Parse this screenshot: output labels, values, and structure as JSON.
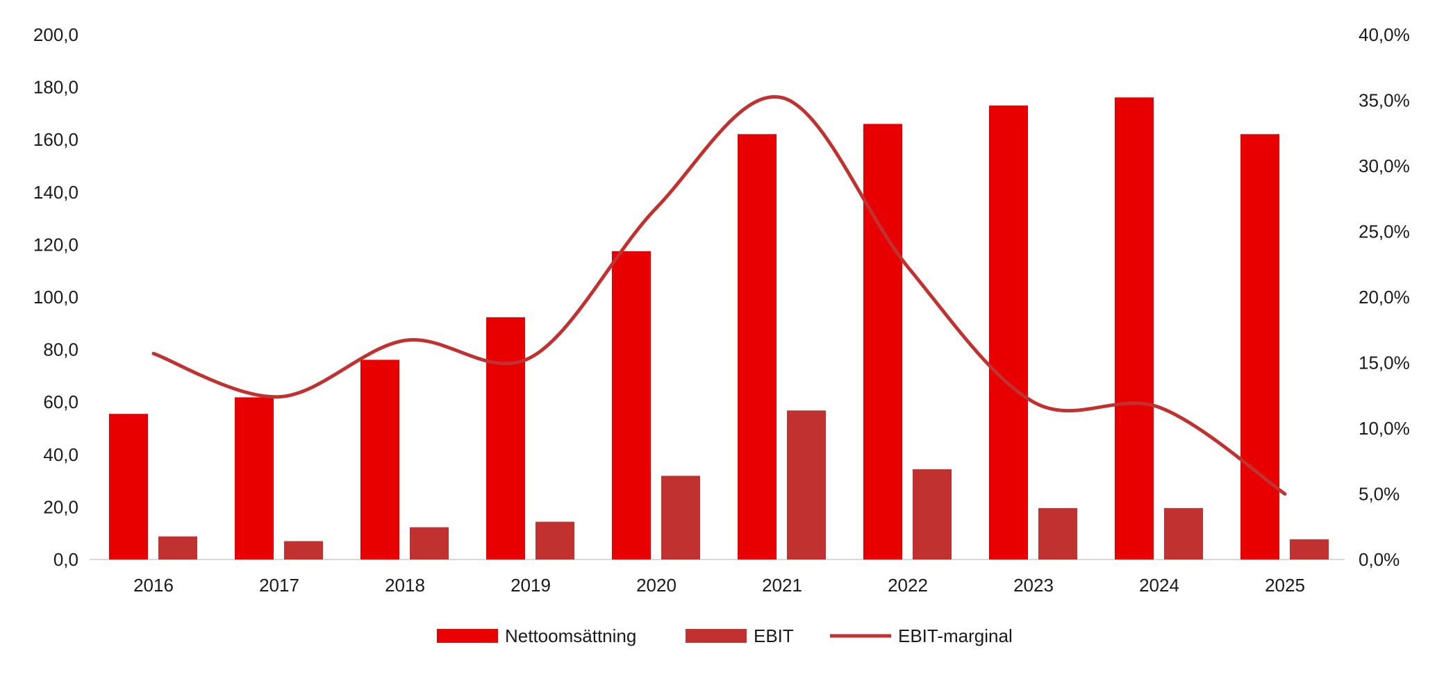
{
  "chart_data": {
    "type": "bar+line",
    "categories": [
      "2016",
      "2017",
      "2018",
      "2019",
      "2020",
      "2021",
      "2022",
      "2023",
      "2024",
      "2025"
    ],
    "series": [
      {
        "name": "Nettoomsättning",
        "type": "bar",
        "axis": "left",
        "color": "#e80000",
        "values": [
          55.5,
          61.8,
          76.1,
          92.3,
          117.5,
          162.1,
          166.0,
          173.0,
          176.1,
          162.1
        ]
      },
      {
        "name": "EBIT",
        "type": "bar",
        "axis": "left",
        "color": "#c0312f",
        "values": [
          8.8,
          7.0,
          12.3,
          14.4,
          31.9,
          56.8,
          34.4,
          19.6,
          19.6,
          7.7
        ]
      },
      {
        "name": "EBIT-marginal",
        "type": "line",
        "axis": "right",
        "smooth": true,
        "color": "#c0312f",
        "values": [
          15.7,
          12.4,
          16.7,
          15.4,
          26.8,
          35.2,
          22.3,
          12.0,
          11.6,
          5.0
        ]
      }
    ],
    "left_axis": {
      "ylim": [
        0,
        200
      ],
      "ticks": [
        "0,0",
        "20,0",
        "40,0",
        "60,0",
        "80,0",
        "100,0",
        "120,0",
        "140,0",
        "160,0",
        "180,0",
        "200,0"
      ]
    },
    "right_axis": {
      "ylim": [
        0,
        40
      ],
      "ticks": [
        "0,0%",
        "5,0%",
        "10,0%",
        "15,0%",
        "20,0%",
        "25,0%",
        "30,0%",
        "35,0%",
        "40,0%"
      ]
    },
    "title": "",
    "xlabel": "",
    "ylabel": "",
    "grid": false,
    "legend": {
      "placement": "bottom",
      "items": [
        "Nettoomsättning",
        "EBIT",
        "EBIT-marginal"
      ]
    }
  }
}
